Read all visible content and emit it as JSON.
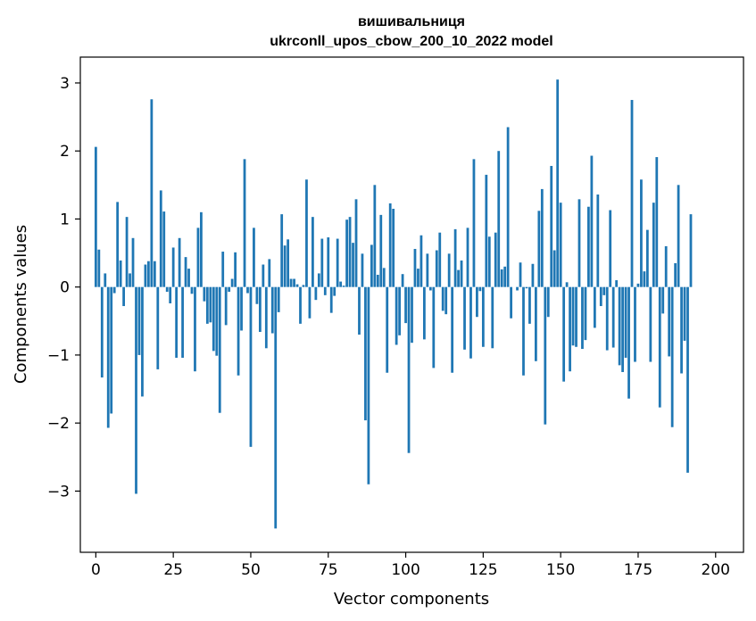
{
  "chart_data": {
    "type": "bar",
    "title": "вишивальниця",
    "subtitle": "ukrconll_upos_cbow_200_10_2022 model",
    "xlabel": "Vector components",
    "ylabel": "Components values",
    "xlim": [
      -5,
      209
    ],
    "ylim": [
      -3.9,
      3.38
    ],
    "xticks": [
      0,
      25,
      50,
      75,
      100,
      125,
      150,
      175,
      200
    ],
    "yticks": [
      -3,
      -2,
      -1,
      0,
      1,
      2,
      3
    ],
    "xtick_labels": [
      "0",
      "25",
      "50",
      "75",
      "100",
      "125",
      "150",
      "175",
      "200"
    ],
    "ytick_labels": [
      "−3",
      "−2",
      "−1",
      "0",
      "1",
      "2",
      "3"
    ],
    "grid": false,
    "bar_color": "#1f77b4",
    "series": [
      {
        "values": [
          2.06,
          0.55,
          -1.33,
          0.2,
          -2.07,
          -1.86,
          -0.09,
          1.25,
          0.39,
          -0.28,
          1.03,
          0.2,
          0.72,
          -3.04,
          -1.0,
          -1.61,
          0.33,
          0.38,
          2.76,
          0.38,
          -1.21,
          1.42,
          1.11,
          -0.07,
          -0.24,
          0.58,
          -1.04,
          0.72,
          -1.04,
          0.44,
          0.27,
          -0.1,
          -1.24,
          0.87,
          1.1,
          -0.21,
          -0.54,
          -0.52,
          -0.94,
          -1.01,
          -1.85,
          0.52,
          -0.56,
          -0.07,
          0.12,
          0.51,
          -1.3,
          -0.64,
          1.88,
          -0.09,
          -2.35,
          0.87,
          -0.25,
          -0.66,
          0.33,
          -0.9,
          0.41,
          -0.68,
          -3.55,
          -0.37,
          1.07,
          0.61,
          0.7,
          0.12,
          0.12,
          0.04,
          -0.54,
          0.03,
          1.58,
          -0.46,
          1.03,
          -0.19,
          0.2,
          0.71,
          -0.12,
          0.73,
          -0.38,
          -0.13,
          0.71,
          0.08,
          0.02,
          0.99,
          1.03,
          0.65,
          1.29,
          -0.7,
          0.49,
          -1.96,
          -2.9,
          0.62,
          1.5,
          0.18,
          1.06,
          0.28,
          -1.26,
          1.23,
          1.15,
          -0.85,
          -0.71,
          0.19,
          -0.53,
          -2.44,
          -0.82,
          0.56,
          0.27,
          0.76,
          -0.77,
          0.49,
          -0.05,
          -1.19,
          0.54,
          0.8,
          -0.35,
          -0.4,
          0.49,
          -1.26,
          0.85,
          0.25,
          0.39,
          -0.92,
          0.87,
          -1.05,
          1.88,
          -0.44,
          -0.06,
          -0.88,
          1.65,
          0.74,
          -0.9,
          0.8,
          2.0,
          0.26,
          0.3,
          2.35,
          -0.46,
          0.0,
          -0.05,
          0.36,
          -1.3,
          -0.02,
          -0.54,
          0.34,
          -1.09,
          1.12,
          1.44,
          -2.02,
          -0.44,
          1.78,
          0.54,
          3.05,
          1.24,
          -1.39,
          0.07,
          -1.24,
          -0.86,
          -0.88,
          1.29,
          -0.91,
          -0.78,
          1.18,
          1.93,
          -0.6,
          1.36,
          -0.28,
          -0.12,
          -0.93,
          1.13,
          -0.89,
          0.1,
          -1.15,
          -1.25,
          -1.04,
          -1.64,
          2.75,
          -1.1,
          0.05,
          1.58,
          0.23,
          0.84,
          -1.1,
          1.24,
          1.91,
          -1.77,
          -0.39,
          0.6,
          -1.02,
          -2.06,
          0.35,
          1.5,
          -1.27,
          -0.79,
          -2.73,
          1.07
        ]
      }
    ]
  }
}
